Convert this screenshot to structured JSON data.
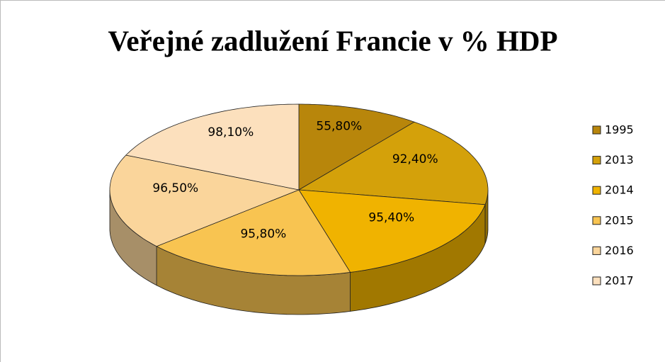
{
  "chart_data": {
    "type": "pie",
    "title": "Veřejné zadlužení Francie v % HDP",
    "categories": [
      "1995",
      "2013",
      "2014",
      "2015",
      "2016",
      "2017"
    ],
    "values": [
      55.8,
      92.4,
      95.4,
      95.8,
      96.5,
      98.1
    ],
    "value_labels": [
      "55,80%",
      "92,40%",
      "95,40%",
      "95,80%",
      "96,50%",
      "98,10%"
    ],
    "colors": [
      "#b8860b",
      "#d4a10a",
      "#f0b300",
      "#f8c451",
      "#fad59b",
      "#fce0bd"
    ],
    "legend": "right"
  }
}
